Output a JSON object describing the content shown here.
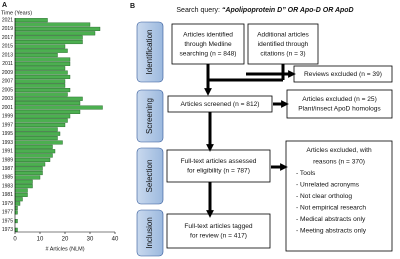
{
  "panel_a_label": "A",
  "chart_data": {
    "type": "barh",
    "y_label": "Time (Years)",
    "x_label": "# Articles (NLM)",
    "categories": [
      "2021",
      null,
      "2019",
      null,
      "2017",
      null,
      "2015",
      null,
      "2013",
      null,
      "2011",
      null,
      "2009",
      null,
      "2007",
      null,
      "2005",
      null,
      "2003",
      null,
      "2001",
      null,
      "1999",
      null,
      "1997",
      null,
      "1995",
      null,
      "1993",
      null,
      "1991",
      null,
      "1989",
      null,
      "1987",
      null,
      "1985",
      null,
      "1983",
      null,
      "1981",
      null,
      "1979",
      null,
      "1977",
      null,
      "1975",
      null,
      "1973"
    ],
    "values": [
      13,
      30,
      34,
      32,
      27,
      27,
      20,
      21,
      17,
      22,
      22,
      20,
      21,
      22,
      20,
      20,
      22,
      21,
      27,
      26,
      35,
      26,
      22,
      21,
      20,
      17,
      18,
      17,
      19,
      15,
      16,
      15,
      14,
      12,
      11,
      11,
      10,
      7,
      7,
      5,
      5,
      3,
      2,
      1,
      1,
      0,
      1,
      0,
      1
    ],
    "color": "#4caf50",
    "xlim": [
      0,
      40
    ],
    "xticks": [
      0,
      10,
      20,
      30,
      40
    ]
  },
  "panel_b": {
    "label": "B",
    "query_prefix": "Search query: ",
    "query": "“Apolipoprotein D” OR Apo-D OR ApoD",
    "stages": [
      "Identification",
      "Screening",
      "Selection",
      "Inclusion"
    ],
    "boxes": [
      {
        "lines": [
          "Articles identified",
          "through Medline",
          "searching (n = 848)"
        ]
      },
      {
        "lines": [
          "Additional articles",
          "identified through",
          "citations (n = 3)"
        ]
      },
      {
        "lines": [
          "Reviews excluded (n = 39)"
        ]
      },
      {
        "lines": [
          "Articles screened (n = 812)"
        ]
      },
      {
        "lines": [
          "Articles excluded (n = 25)",
          "Plant/insect ApoD homologs"
        ]
      },
      {
        "lines": [
          "Full-text articles assessed",
          "for eligibility (n = 787)"
        ]
      },
      {
        "lines": [
          "Articles excluded, with",
          "reasons (n = 370)",
          "- Tools",
          "- Unrelated acronyms",
          "- Not clear ortholog",
          "- Not empirical research",
          "- Medical abstracts only",
          "- Meeting abstracts only"
        ]
      },
      {
        "lines": [
          "Full-text articles tagged",
          "for review (n = 417)"
        ]
      }
    ]
  }
}
